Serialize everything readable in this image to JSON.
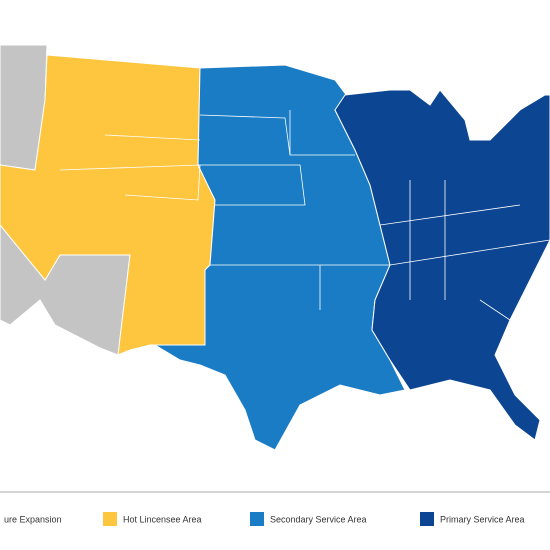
{
  "legend": [
    {
      "label": "ure Expansion",
      "color": "#c4c4c4"
    },
    {
      "label": "Hot Lincensee Area",
      "color": "#fec63e"
    },
    {
      "label": "Secondary Service Area",
      "color": "#1a7cc4"
    },
    {
      "label": "Primary Service Area",
      "color": "#0c4591"
    }
  ]
}
